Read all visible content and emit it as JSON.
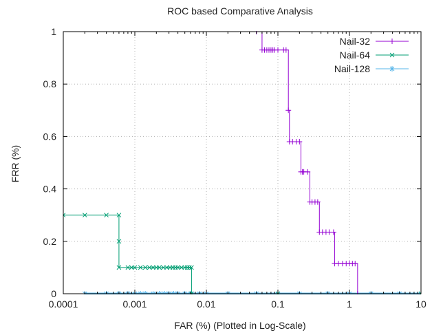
{
  "chart_data": {
    "type": "line",
    "title": "ROC based Comparative Analysis",
    "xlabel": "FAR (%) (Plotted in Log-Scale)",
    "ylabel": "FRR (%)",
    "x_scale": "log",
    "xlim": [
      0.0001,
      10
    ],
    "ylim": [
      0,
      1
    ],
    "x_ticks": [
      "0.0001",
      "0.001",
      "0.01",
      "0.1",
      "1",
      "10"
    ],
    "y_ticks": [
      "0",
      "0.2",
      "0.4",
      "0.6",
      "0.8",
      "1"
    ],
    "grid": true,
    "legend_position": "top-right",
    "series": [
      {
        "name": "Nail-32",
        "color": "#9400d3",
        "marker": "plus",
        "points": [
          [
            0.05,
            1
          ],
          [
            0.06,
            0.93
          ],
          [
            0.065,
            0.93
          ],
          [
            0.07,
            0.93
          ],
          [
            0.075,
            0.93
          ],
          [
            0.08,
            0.93
          ],
          [
            0.085,
            0.93
          ],
          [
            0.09,
            0.93
          ],
          [
            0.1,
            0.93
          ],
          [
            0.12,
            0.93
          ],
          [
            0.13,
            0.93
          ],
          [
            0.14,
            0.7
          ],
          [
            0.145,
            0.58
          ],
          [
            0.16,
            0.58
          ],
          [
            0.18,
            0.58
          ],
          [
            0.2,
            0.58
          ],
          [
            0.21,
            0.465
          ],
          [
            0.22,
            0.465
          ],
          [
            0.23,
            0.465
          ],
          [
            0.26,
            0.465
          ],
          [
            0.28,
            0.35
          ],
          [
            0.3,
            0.35
          ],
          [
            0.33,
            0.35
          ],
          [
            0.36,
            0.35
          ],
          [
            0.38,
            0.235
          ],
          [
            0.42,
            0.235
          ],
          [
            0.47,
            0.235
          ],
          [
            0.52,
            0.235
          ],
          [
            0.6,
            0.235
          ],
          [
            0.62,
            0.115
          ],
          [
            0.7,
            0.115
          ],
          [
            0.8,
            0.115
          ],
          [
            0.9,
            0.115
          ],
          [
            1.0,
            0.115
          ],
          [
            1.1,
            0.115
          ],
          [
            1.2,
            0.115
          ],
          [
            1.3,
            0
          ]
        ]
      },
      {
        "name": "Nail-64",
        "color": "#009e73",
        "marker": "x",
        "points": [
          [
            0.0001,
            0.3
          ],
          [
            0.0002,
            0.3
          ],
          [
            0.0004,
            0.3
          ],
          [
            0.0006,
            0.3
          ],
          [
            0.0006,
            0.2
          ],
          [
            0.0006,
            0.1
          ],
          [
            0.0008,
            0.1
          ],
          [
            0.0009,
            0.1
          ],
          [
            0.001,
            0.1
          ],
          [
            0.0012,
            0.1
          ],
          [
            0.0014,
            0.1
          ],
          [
            0.0016,
            0.1
          ],
          [
            0.0018,
            0.1
          ],
          [
            0.002,
            0.1
          ],
          [
            0.0022,
            0.1
          ],
          [
            0.0025,
            0.1
          ],
          [
            0.0028,
            0.1
          ],
          [
            0.0031,
            0.1
          ],
          [
            0.0034,
            0.1
          ],
          [
            0.0037,
            0.1
          ],
          [
            0.004,
            0.1
          ],
          [
            0.0045,
            0.1
          ],
          [
            0.005,
            0.1
          ],
          [
            0.0054,
            0.1
          ],
          [
            0.0058,
            0.1
          ],
          [
            0.0062,
            0.1
          ],
          [
            0.0062,
            0
          ],
          [
            0.1,
            0
          ],
          [
            10,
            0
          ]
        ]
      },
      {
        "name": "Nail-128",
        "color": "#56b4e9",
        "marker": "asterisk",
        "points": [
          [
            0.0002,
            0
          ],
          [
            0.0004,
            0
          ],
          [
            0.0006,
            0
          ],
          [
            0.0008,
            0
          ],
          [
            0.001,
            0
          ],
          [
            0.0012,
            0
          ],
          [
            0.0014,
            0
          ],
          [
            0.0018,
            0
          ],
          [
            0.0022,
            0
          ],
          [
            0.0026,
            0
          ],
          [
            0.003,
            0
          ],
          [
            0.0035,
            0
          ],
          [
            0.004,
            0
          ],
          [
            0.005,
            0
          ],
          [
            0.006,
            0
          ],
          [
            0.008,
            0
          ],
          [
            0.01,
            0
          ],
          [
            0.02,
            0
          ],
          [
            0.05,
            0
          ],
          [
            0.1,
            0
          ],
          [
            0.2,
            0
          ],
          [
            0.5,
            0
          ],
          [
            1,
            0
          ],
          [
            2,
            0
          ],
          [
            5,
            0
          ],
          [
            10,
            0
          ]
        ]
      }
    ]
  }
}
